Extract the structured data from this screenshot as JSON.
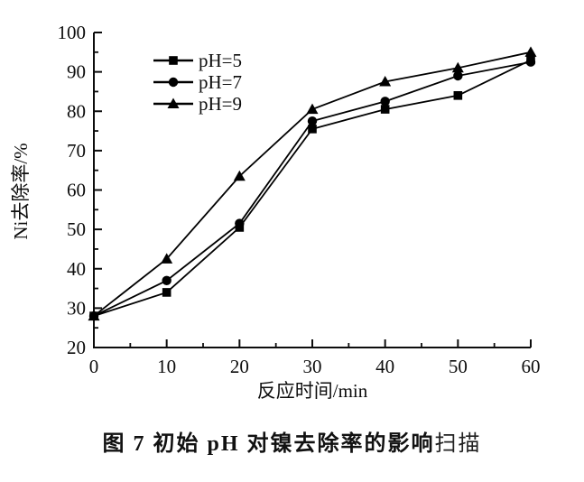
{
  "chart_data": {
    "type": "line",
    "title": "",
    "xlabel": "反应时间/min",
    "ylabel": "Ni去除率/%",
    "xlim": [
      0,
      60
    ],
    "ylim": [
      20,
      100
    ],
    "x_major_ticks": [
      0,
      10,
      20,
      30,
      40,
      50,
      60
    ],
    "x_minor_ticks": [
      5,
      15,
      25,
      35,
      45,
      55
    ],
    "y_major_ticks": [
      20,
      30,
      40,
      50,
      60,
      70,
      80,
      90,
      100
    ],
    "y_minor_ticks": [
      25,
      35,
      45,
      55,
      65,
      75,
      85,
      95
    ],
    "x": [
      0,
      10,
      20,
      30,
      40,
      50,
      60
    ],
    "series": [
      {
        "name": "pH=5",
        "marker": "square",
        "color": "#000000",
        "values": [
          28,
          34,
          50.5,
          75.5,
          80.5,
          84,
          93
        ]
      },
      {
        "name": "pH=7",
        "marker": "circle",
        "color": "#000000",
        "values": [
          28,
          37,
          51.5,
          77.5,
          82.5,
          89,
          92.5
        ]
      },
      {
        "name": "pH=9",
        "marker": "triangle",
        "color": "#000000",
        "values": [
          28,
          42.5,
          63.5,
          80.5,
          87.5,
          91,
          95
        ]
      }
    ],
    "legend_position": "upper-left-inside",
    "grid": false,
    "axis_color": "#0d0d0d"
  },
  "caption": {
    "bold": "图 7  初始 pH 对镍去除率的影响",
    "normal": "扫描"
  }
}
